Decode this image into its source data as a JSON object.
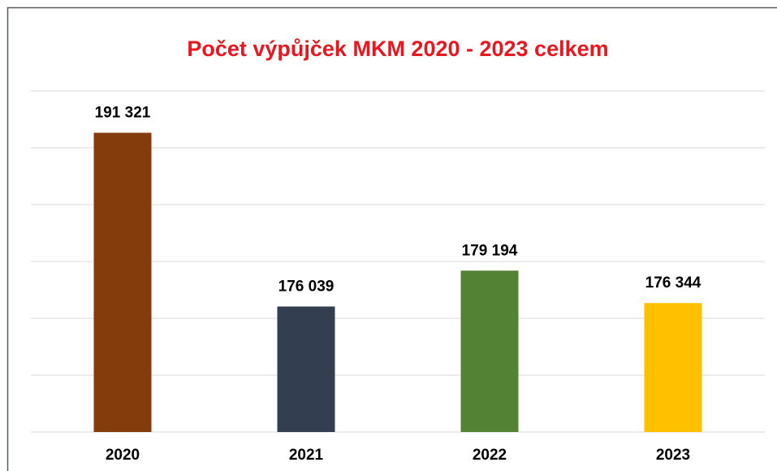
{
  "chart_data": {
    "type": "bar",
    "title": "Počet výpůjček MKM 2020 - 2023 celkem",
    "categories": [
      "2020",
      "2021",
      "2022",
      "2023"
    ],
    "values": [
      191321,
      176039,
      179194,
      176344
    ],
    "value_labels": [
      "191 321",
      "176 039",
      "179 194",
      "176 344"
    ],
    "colors": [
      "#843c0c",
      "#333f50",
      "#548235",
      "#ffc000"
    ],
    "ylim": [
      165000,
      195000
    ],
    "yticks": [
      165000,
      170000,
      175000,
      180000,
      185000,
      190000,
      195000
    ],
    "grid": true
  }
}
